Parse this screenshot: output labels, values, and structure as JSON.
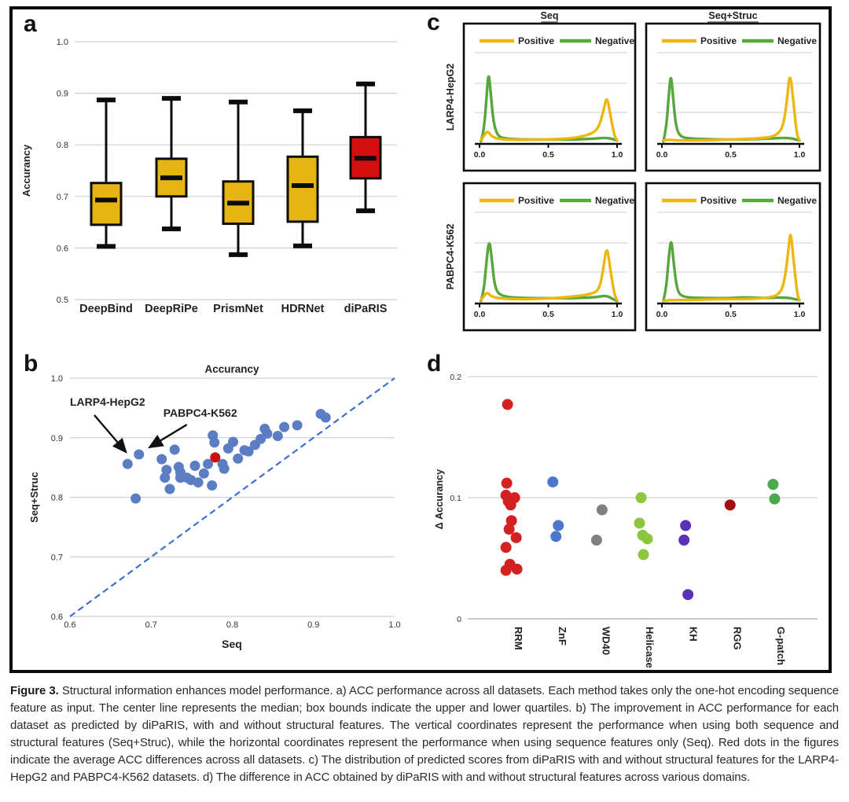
{
  "panels": {
    "a_label": "a",
    "b_label": "b",
    "c_label": "c",
    "d_label": "d"
  },
  "caption": {
    "prefix": "Figure 3.",
    "body": " Structural information enhances model performance. a) ACC performance across all datasets. Each method takes only the one-hot encoding sequence feature as input. The center line represents the median; box bounds indicate the upper and lower quartiles. b) The improvement in ACC performance for each dataset as predicted by diPaRIS, with and without structural features. The vertical coordinates represent the performance when using both sequence and structural features (Seq+Struc), while the horizontal coordinates represent the performance when using sequence features only (Seq). Red dots in the figures indicate the average ACC differences across all datasets. c) The distribution of predicted scores from diPaRIS with and without structural features for the LARP4-HepG2 and PABPC4-K562 datasets. d) The difference in ACC obtained by diPaRIS with and without structural features across various domains."
  },
  "colors": {
    "gold": "#E7B512",
    "red": "#D40E0E",
    "scatter_blue": "#5A7DC4",
    "scatter_red": "#CC1010",
    "diagonal_blue": "#3E6FD0",
    "positive_yellow": "#EDB70F",
    "negative_green": "#56A73C",
    "gridline": "#d0d0d0"
  },
  "chart_data": [
    {
      "id": "panel_a",
      "type": "bar",
      "subtype": "boxplot",
      "ylabel": "Accurancy",
      "yticks": [
        "1.0",
        "0.9",
        "0.8",
        "0.7",
        "0.6",
        "0.5"
      ],
      "ylim": [
        0.5,
        1.0
      ],
      "categories": [
        "DeepBind",
        "DeepRiPe",
        "PrismNet",
        "HDRNet",
        "diPaRIS"
      ],
      "boxes": [
        {
          "label": "DeepBind",
          "low": 0.603,
          "q1": 0.645,
          "median": 0.693,
          "q3": 0.726,
          "high": 0.887,
          "color": "#E7B512"
        },
        {
          "label": "DeepRiPe",
          "low": 0.637,
          "q1": 0.7,
          "median": 0.736,
          "q3": 0.773,
          "high": 0.89,
          "color": "#E7B512"
        },
        {
          "label": "PrismNet",
          "low": 0.587,
          "q1": 0.647,
          "median": 0.687,
          "q3": 0.729,
          "high": 0.883,
          "color": "#E7B512"
        },
        {
          "label": "HDRNet",
          "low": 0.604,
          "q1": 0.651,
          "median": 0.721,
          "q3": 0.777,
          "high": 0.866,
          "color": "#E7B512"
        },
        {
          "label": "diPaRIS",
          "low": 0.672,
          "q1": 0.735,
          "median": 0.774,
          "q3": 0.815,
          "high": 0.918,
          "color": "#D40E0E"
        }
      ]
    },
    {
      "id": "panel_b",
      "type": "scatter",
      "title": "Accurancy",
      "xlabel": "Seq",
      "ylabel": "Seq+Struc",
      "xlim": [
        0.6,
        1.0
      ],
      "ylim": [
        0.6,
        1.0
      ],
      "xticks": [
        "0.6",
        "0.7",
        "0.8",
        "0.9",
        "1.0"
      ],
      "yticks": [
        "1.0",
        "0.9",
        "0.8",
        "0.7",
        "0.6"
      ],
      "diagonal": true,
      "point_color": "#5A7DC4",
      "mean_point_color": "#CC1010",
      "points": [
        [
          0.671,
          0.856
        ],
        [
          0.685,
          0.872
        ],
        [
          0.681,
          0.798
        ],
        [
          0.713,
          0.864
        ],
        [
          0.719,
          0.846
        ],
        [
          0.717,
          0.833
        ],
        [
          0.723,
          0.814
        ],
        [
          0.729,
          0.88
        ],
        [
          0.734,
          0.851
        ],
        [
          0.736,
          0.842
        ],
        [
          0.736,
          0.833
        ],
        [
          0.744,
          0.833
        ],
        [
          0.749,
          0.829
        ],
        [
          0.754,
          0.853
        ],
        [
          0.758,
          0.825
        ],
        [
          0.765,
          0.84
        ],
        [
          0.77,
          0.856
        ],
        [
          0.775,
          0.82
        ],
        [
          0.776,
          0.904
        ],
        [
          0.778,
          0.892
        ],
        [
          0.788,
          0.856
        ],
        [
          0.79,
          0.848
        ],
        [
          0.795,
          0.882
        ],
        [
          0.801,
          0.893
        ],
        [
          0.807,
          0.865
        ],
        [
          0.815,
          0.879
        ],
        [
          0.82,
          0.877
        ],
        [
          0.828,
          0.888
        ],
        [
          0.835,
          0.898
        ],
        [
          0.84,
          0.915
        ],
        [
          0.843,
          0.907
        ],
        [
          0.856,
          0.903
        ],
        [
          0.864,
          0.918
        ],
        [
          0.88,
          0.921
        ],
        [
          0.909,
          0.94
        ],
        [
          0.915,
          0.934
        ]
      ],
      "mean_point": [
        0.779,
        0.867
      ],
      "annotations": [
        {
          "label": "LARP4-HepG2",
          "label_pos": [
            0.6,
            0.954
          ],
          "arrow_from": [
            0.63,
            0.938
          ],
          "arrow_to": [
            0.669,
            0.876
          ]
        },
        {
          "label": "PABPC4-K562",
          "label_pos": [
            0.715,
            0.935
          ],
          "arrow_from": [
            0.744,
            0.922
          ],
          "arrow_to": [
            0.698,
            0.884
          ]
        }
      ]
    },
    {
      "id": "panel_c",
      "type": "line",
      "subtype": "density-grid",
      "columns": [
        "Seq",
        "Seq+Struc"
      ],
      "rows": [
        "LARP4-HepG2",
        "PABPC4-K562"
      ],
      "legend": [
        "Positive",
        "Negative"
      ],
      "positive_color": "#EDB70F",
      "negative_color": "#56A73C",
      "xticks": [
        "0.0",
        "0.5",
        "1.0"
      ],
      "subplots": [
        {
          "row": 0,
          "col": 0,
          "negative": [
            [
              0.01,
              0.01
            ],
            [
              0.03,
              0.1
            ],
            [
              0.05,
              0.45
            ],
            [
              0.065,
              0.76
            ],
            [
              0.08,
              0.55
            ],
            [
              0.1,
              0.22
            ],
            [
              0.13,
              0.07
            ],
            [
              0.18,
              0.04
            ],
            [
              0.3,
              0.03
            ],
            [
              0.5,
              0.03
            ],
            [
              0.7,
              0.03
            ],
            [
              0.85,
              0.04
            ],
            [
              0.93,
              0.05
            ],
            [
              1.0,
              0.02
            ]
          ],
          "positive": [
            [
              0.01,
              0.02
            ],
            [
              0.04,
              0.09
            ],
            [
              0.06,
              0.12
            ],
            [
              0.09,
              0.06
            ],
            [
              0.15,
              0.03
            ],
            [
              0.3,
              0.025
            ],
            [
              0.5,
              0.03
            ],
            [
              0.65,
              0.04
            ],
            [
              0.78,
              0.07
            ],
            [
              0.86,
              0.13
            ],
            [
              0.9,
              0.32
            ],
            [
              0.925,
              0.5
            ],
            [
              0.95,
              0.3
            ],
            [
              0.98,
              0.07
            ],
            [
              1.0,
              0.02
            ]
          ]
        },
        {
          "row": 0,
          "col": 1,
          "negative": [
            [
              0.01,
              0.01
            ],
            [
              0.03,
              0.12
            ],
            [
              0.05,
              0.5
            ],
            [
              0.065,
              0.74
            ],
            [
              0.08,
              0.5
            ],
            [
              0.1,
              0.18
            ],
            [
              0.13,
              0.06
            ],
            [
              0.2,
              0.04
            ],
            [
              0.4,
              0.03
            ],
            [
              0.6,
              0.03
            ],
            [
              0.8,
              0.04
            ],
            [
              0.92,
              0.05
            ],
            [
              1.0,
              0.02
            ]
          ],
          "positive": [
            [
              0.01,
              0.02
            ],
            [
              0.05,
              0.03
            ],
            [
              0.1,
              0.02
            ],
            [
              0.3,
              0.02
            ],
            [
              0.5,
              0.03
            ],
            [
              0.7,
              0.04
            ],
            [
              0.82,
              0.06
            ],
            [
              0.88,
              0.15
            ],
            [
              0.91,
              0.45
            ],
            [
              0.93,
              0.76
            ],
            [
              0.955,
              0.45
            ],
            [
              0.98,
              0.08
            ],
            [
              1.0,
              0.02
            ]
          ]
        },
        {
          "row": 1,
          "col": 0,
          "negative": [
            [
              0.01,
              0.01
            ],
            [
              0.03,
              0.1
            ],
            [
              0.05,
              0.42
            ],
            [
              0.07,
              0.68
            ],
            [
              0.09,
              0.45
            ],
            [
              0.11,
              0.16
            ],
            [
              0.15,
              0.06
            ],
            [
              0.3,
              0.04
            ],
            [
              0.5,
              0.04
            ],
            [
              0.7,
              0.04
            ],
            [
              0.85,
              0.05
            ],
            [
              0.92,
              0.07
            ],
            [
              0.97,
              0.03
            ],
            [
              1.0,
              0.01
            ]
          ],
          "positive": [
            [
              0.01,
              0.02
            ],
            [
              0.04,
              0.08
            ],
            [
              0.06,
              0.1
            ],
            [
              0.09,
              0.05
            ],
            [
              0.2,
              0.03
            ],
            [
              0.4,
              0.03
            ],
            [
              0.55,
              0.04
            ],
            [
              0.7,
              0.06
            ],
            [
              0.8,
              0.08
            ],
            [
              0.87,
              0.12
            ],
            [
              0.9,
              0.35
            ],
            [
              0.925,
              0.61
            ],
            [
              0.95,
              0.35
            ],
            [
              0.98,
              0.08
            ],
            [
              1.0,
              0.02
            ]
          ]
        },
        {
          "row": 1,
          "col": 1,
          "negative": [
            [
              0.01,
              0.01
            ],
            [
              0.03,
              0.12
            ],
            [
              0.05,
              0.48
            ],
            [
              0.068,
              0.69
            ],
            [
              0.085,
              0.42
            ],
            [
              0.11,
              0.12
            ],
            [
              0.15,
              0.05
            ],
            [
              0.3,
              0.04
            ],
            [
              0.5,
              0.04
            ],
            [
              0.6,
              0.05
            ],
            [
              0.75,
              0.04
            ],
            [
              0.9,
              0.05
            ],
            [
              1.0,
              0.02
            ]
          ],
          "positive": [
            [
              0.01,
              0.01
            ],
            [
              0.05,
              0.02
            ],
            [
              0.2,
              0.02
            ],
            [
              0.4,
              0.03
            ],
            [
              0.6,
              0.03
            ],
            [
              0.75,
              0.04
            ],
            [
              0.85,
              0.07
            ],
            [
              0.89,
              0.2
            ],
            [
              0.92,
              0.55
            ],
            [
              0.935,
              0.78
            ],
            [
              0.96,
              0.4
            ],
            [
              0.985,
              0.07
            ],
            [
              1.0,
              0.02
            ]
          ]
        }
      ]
    },
    {
      "id": "panel_d",
      "type": "scatter",
      "subtype": "strip",
      "ylabel": "Δ Accurancy",
      "yticks": [
        "0.2",
        "0.1",
        "0"
      ],
      "ylim": [
        0,
        0.2
      ],
      "categories": [
        "RRM",
        "ZnF",
        "WD40",
        "Helicase",
        "KH",
        "RGG",
        "G-patch"
      ],
      "series": [
        {
          "name": "RRM",
          "color": "#D42020",
          "points": [
            [
              -5,
              0.177
            ],
            [
              -6,
              0.112
            ],
            [
              -7,
              0.102
            ],
            [
              4,
              0.1
            ],
            [
              -4,
              0.097
            ],
            [
              -1,
              0.094
            ],
            [
              0,
              0.081
            ],
            [
              -3,
              0.074
            ],
            [
              6,
              0.067
            ],
            [
              -7,
              0.059
            ],
            [
              -2,
              0.045
            ],
            [
              7,
              0.041
            ],
            [
              -7,
              0.04
            ]
          ]
        },
        {
          "name": "ZnF",
          "color": "#4C77CE",
          "points": [
            [
              -3,
              0.113
            ],
            [
              4,
              0.077
            ],
            [
              1,
              0.068
            ]
          ]
        },
        {
          "name": "WD40",
          "color": "#7F7F7F",
          "points": [
            [
              4,
              0.09
            ],
            [
              -3,
              0.065
            ]
          ]
        },
        {
          "name": "Helicase",
          "color": "#8CC63F",
          "points": [
            [
              -2,
              0.1
            ],
            [
              -4,
              0.079
            ],
            [
              0,
              0.069
            ],
            [
              6,
              0.066
            ],
            [
              1,
              0.053
            ]
          ]
        },
        {
          "name": "KH",
          "color": "#5A31B8",
          "points": [
            [
              -1,
              0.077
            ],
            [
              -3,
              0.065
            ],
            [
              2,
              0.02
            ]
          ]
        },
        {
          "name": "RGG",
          "color": "#A01010",
          "points": [
            [
              0,
              0.094
            ]
          ]
        },
        {
          "name": "G-patch",
          "color": "#4BA84B",
          "points": [
            [
              -1,
              0.111
            ],
            [
              1,
              0.099
            ]
          ]
        }
      ]
    }
  ]
}
